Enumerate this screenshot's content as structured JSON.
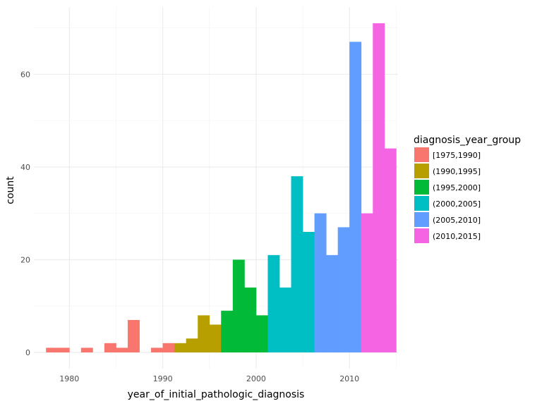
{
  "chart_data": {
    "type": "bar",
    "title": "",
    "xlabel": "year_of_initial_pathologic_diagnosis",
    "ylabel": "count",
    "xlim": [
      1976.2,
      2015.2
    ],
    "ylim": [
      -3.5,
      74.5
    ],
    "x_ticks": [
      1980,
      1990,
      2000,
      2010
    ],
    "y_ticks": [
      0,
      20,
      40,
      60
    ],
    "grid": true,
    "legend_placement": "right",
    "legend": {
      "title": "diagnosis_year_group",
      "entries": [
        {
          "label": "[1975,1990]",
          "color": "#F8766D"
        },
        {
          "label": "(1990,1995]",
          "color": "#B79F00"
        },
        {
          "label": "(1995,2000]",
          "color": "#00BA38"
        },
        {
          "label": "(2000,2005]",
          "color": "#00BFC4"
        },
        {
          "label": "(2005,2010]",
          "color": "#619CFF"
        },
        {
          "label": "(2010,2015]",
          "color": "#F564E3"
        }
      ]
    },
    "bin_width": 1.25,
    "bins": [
      {
        "x0": 1977.5,
        "x1": 1978.75,
        "count": 1,
        "group": 0
      },
      {
        "x0": 1978.75,
        "x1": 1980.0,
        "count": 1,
        "group": 0
      },
      {
        "x0": 1981.25,
        "x1": 1982.5,
        "count": 1,
        "group": 0
      },
      {
        "x0": 1983.75,
        "x1": 1985.0,
        "count": 2,
        "group": 0
      },
      {
        "x0": 1985.0,
        "x1": 1986.25,
        "count": 1,
        "group": 0
      },
      {
        "x0": 1986.25,
        "x1": 1987.5,
        "count": 7,
        "group": 0
      },
      {
        "x0": 1988.75,
        "x1": 1990.0,
        "count": 1,
        "group": 0
      },
      {
        "x0": 1990.0,
        "x1": 1991.25,
        "count": 2,
        "group": 0
      },
      {
        "x0": 1991.25,
        "x1": 1992.5,
        "count": 2,
        "group": 1
      },
      {
        "x0": 1992.5,
        "x1": 1993.75,
        "count": 3,
        "group": 1
      },
      {
        "x0": 1993.75,
        "x1": 1995.0,
        "count": 8,
        "group": 1
      },
      {
        "x0": 1995.0,
        "x1": 1996.25,
        "count": 6,
        "group": 1
      },
      {
        "x0": 1996.25,
        "x1": 1997.5,
        "count": 9,
        "group": 2
      },
      {
        "x0": 1997.5,
        "x1": 1998.75,
        "count": 20,
        "group": 2
      },
      {
        "x0": 1998.75,
        "x1": 2000.0,
        "count": 14,
        "group": 2
      },
      {
        "x0": 2000.0,
        "x1": 2001.25,
        "count": 8,
        "group": 2
      },
      {
        "x0": 2001.25,
        "x1": 2002.5,
        "count": 21,
        "group": 3
      },
      {
        "x0": 2002.5,
        "x1": 2003.75,
        "count": 14,
        "group": 3
      },
      {
        "x0": 2003.75,
        "x1": 2005.0,
        "count": 38,
        "group": 3
      },
      {
        "x0": 2005.0,
        "x1": 2006.25,
        "count": 26,
        "group": 3
      },
      {
        "x0": 2006.25,
        "x1": 2007.5,
        "count": 30,
        "group": 4
      },
      {
        "x0": 2007.5,
        "x1": 2008.75,
        "count": 21,
        "group": 4
      },
      {
        "x0": 2008.75,
        "x1": 2010.0,
        "count": 27,
        "group": 4
      },
      {
        "x0": 2010.0,
        "x1": 2011.25,
        "count": 67,
        "group": 4
      },
      {
        "x0": 2011.25,
        "x1": 2012.5,
        "count": 30,
        "group": 5
      },
      {
        "x0": 2012.5,
        "x1": 2013.75,
        "count": 71,
        "group": 5
      },
      {
        "x0": 2013.75,
        "x1": 2015.0,
        "count": 44,
        "group": 5
      }
    ]
  }
}
